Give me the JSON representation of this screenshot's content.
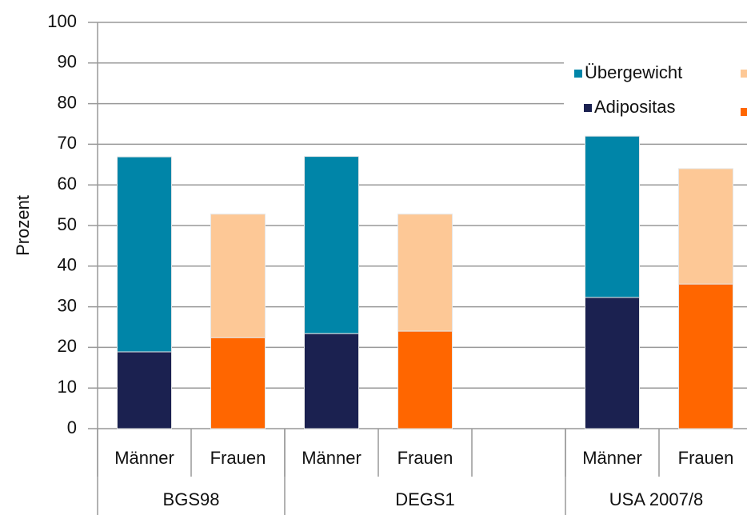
{
  "chart_data": {
    "type": "stacked_bar",
    "categories": [
      "Männer",
      "Frauen",
      "Männer",
      "Frauen",
      null,
      "Männer",
      "Frauen"
    ],
    "groups": [
      "BGS98",
      "DEGS1",
      "USA 2007/8"
    ],
    "y_label": "Prozent",
    "ylim": [
      0,
      100
    ],
    "yticks": [
      0,
      10,
      20,
      30,
      40,
      50,
      60,
      70,
      80,
      90,
      100
    ],
    "grid": true,
    "legend": "top-right",
    "series": [
      {
        "name": "Adipositas",
        "colors": [
          "#1b2150",
          "#ff6600",
          "#1b2150",
          "#ff6600",
          null,
          "#1b2150",
          "#ff6600"
        ],
        "values": [
          18.9,
          22.4,
          23.4,
          24.0,
          null,
          32.3,
          35.6
        ]
      },
      {
        "name": "Übergewicht",
        "colors": [
          "#0085a8",
          "#fdc896",
          "#0085a8",
          "#fdc896",
          null,
          "#0085a8",
          "#fdc896"
        ],
        "values": [
          48.0,
          30.4,
          43.6,
          28.8,
          null,
          39.7,
          28.4
        ]
      }
    ]
  }
}
